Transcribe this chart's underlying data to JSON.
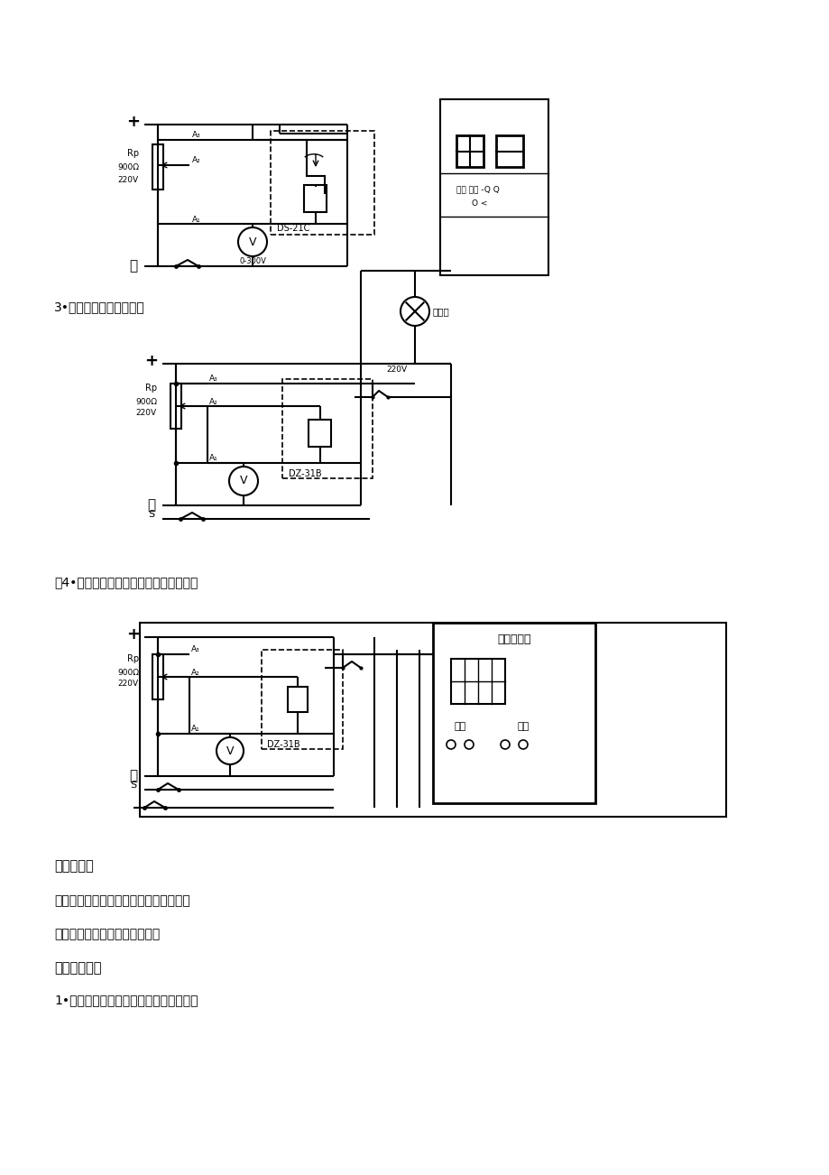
{
  "bg_color": "#ffffff",
  "text_color": "#000000",
  "line_color": "#000000",
  "label3": "3•中间继电器实验接线图",
  "label4": "加4•中间继电器动作时间测量实验接线图",
  "label_san": "三、预习题",
  "label_q": "影响起动电压、返回电压的因素是什么？",
  "label_ans": "答：额定电压和继电器内部结构",
  "label_si": "四、实验内容",
  "label_1": "1•时间继电器的动作电流和返回电流测试"
}
